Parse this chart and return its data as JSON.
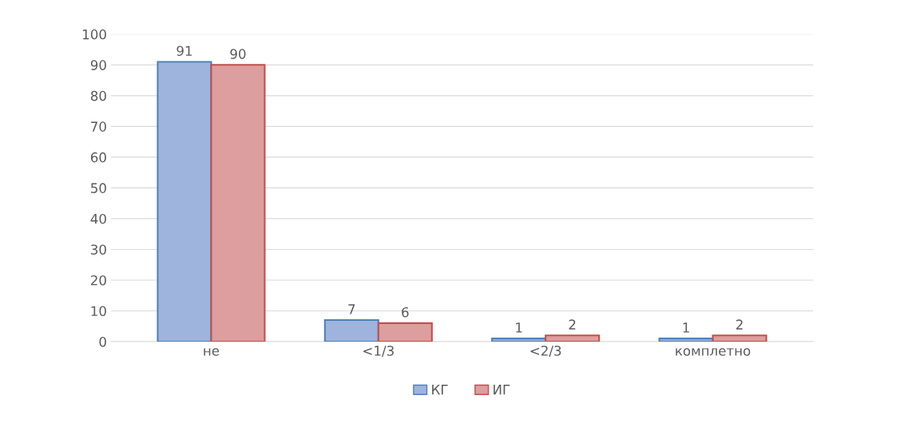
{
  "chart_data": {
    "type": "bar",
    "categories": [
      "не",
      "<1/3",
      "<2/3",
      "комплетно"
    ],
    "series": [
      {
        "name": "КГ",
        "color": "#9fb4dc",
        "values": [
          91,
          7,
          1,
          1
        ]
      },
      {
        "name": "ИГ",
        "color": "#dc9e9e",
        "values": [
          90,
          6,
          2,
          2
        ]
      }
    ],
    "ylim": [
      0,
      100
    ],
    "yticks": [
      0,
      10,
      20,
      30,
      40,
      50,
      60,
      70,
      80,
      90,
      100
    ],
    "grid": "y",
    "legend": "bottom",
    "data_labels": true
  }
}
